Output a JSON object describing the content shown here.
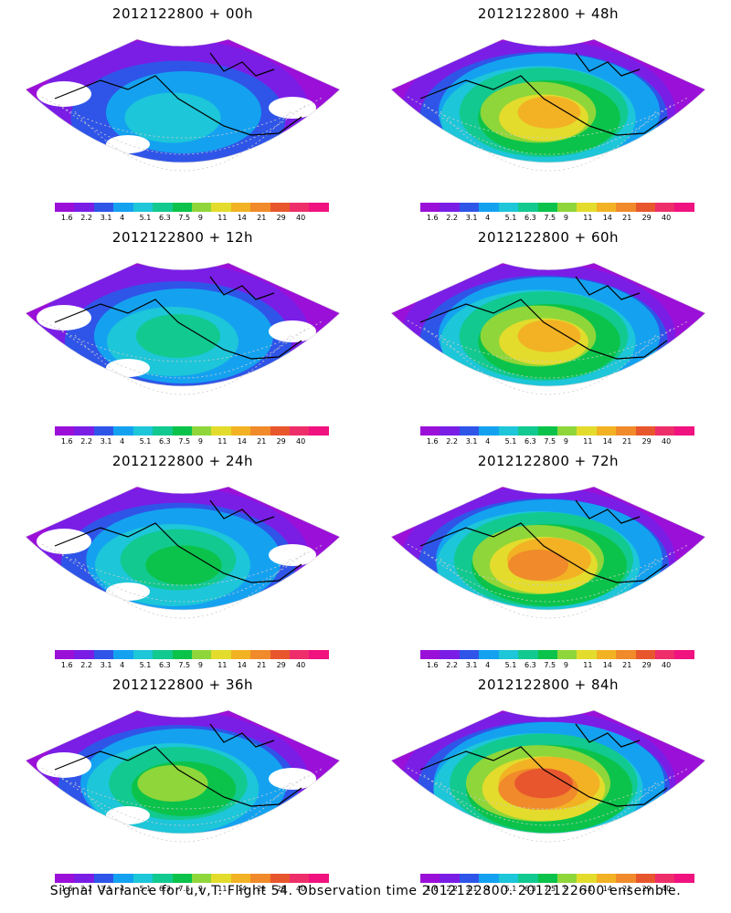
{
  "panels": [
    {
      "title": "2012122800 + 00h",
      "fill_level": 0.15
    },
    {
      "title": "2012122800 + 48h",
      "fill_level": 0.62
    },
    {
      "title": "2012122800 + 12h",
      "fill_level": 0.25
    },
    {
      "title": "2012122800 + 60h",
      "fill_level": 0.7
    },
    {
      "title": "2012122800 + 24h",
      "fill_level": 0.35
    },
    {
      "title": "2012122800 + 72h",
      "fill_level": 0.78
    },
    {
      "title": "2012122800 + 36h",
      "fill_level": 0.45
    },
    {
      "title": "2012122800 + 84h",
      "fill_level": 0.85
    }
  ],
  "colorbar": {
    "colors": [
      "#9b10d8",
      "#7a1ee6",
      "#2f55e8",
      "#14a2f0",
      "#1dc6d8",
      "#12c98f",
      "#0bc34a",
      "#8fd63a",
      "#e3dc2c",
      "#f2b224",
      "#f08a2a",
      "#e8562e",
      "#ee2e6a",
      "#f0127f"
    ],
    "ticks": [
      "1.6",
      "2.2",
      "3.1",
      "4",
      "5.1",
      "6.3",
      "7.5",
      "9",
      "11",
      "14",
      "21",
      "29",
      "40"
    ]
  },
  "footer": "Signal Variance for u,v,T. Flight 54. Observation time 2012122800. 2012122600 ensemble."
}
